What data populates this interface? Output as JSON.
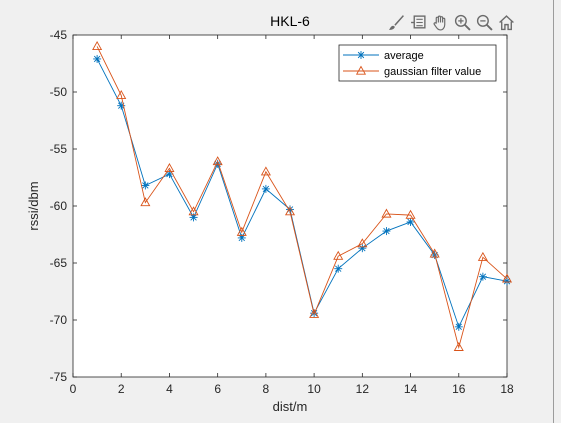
{
  "toolbar": {
    "icons": [
      "brush-icon",
      "data-tips-icon",
      "pan-hand-icon",
      "zoom-in-icon",
      "zoom-out-icon",
      "home-icon"
    ]
  },
  "chart_data": {
    "type": "line",
    "title": "HKL-6",
    "xlabel": "dist/m",
    "ylabel": "rssi/dbm",
    "xlim": [
      0,
      18
    ],
    "ylim": [
      -75,
      -45
    ],
    "xticks": [
      "0",
      "2",
      "4",
      "6",
      "8",
      "10",
      "12",
      "14",
      "16",
      "18"
    ],
    "yticks": [
      "-45",
      "-50",
      "-55",
      "-60",
      "-65",
      "-70",
      "-75"
    ],
    "grid": false,
    "legend_position": "top-right",
    "x": [
      1,
      2,
      3,
      4,
      5,
      6,
      7,
      8,
      9,
      10,
      11,
      12,
      13,
      14,
      15,
      16,
      17,
      18
    ],
    "series": [
      {
        "name": "average",
        "color": "#0072BD",
        "marker": "asterisk",
        "values": [
          -47.1,
          -51.2,
          -58.2,
          -57.2,
          -61.0,
          -56.3,
          -62.8,
          -58.5,
          -60.3,
          -69.4,
          -65.5,
          -63.7,
          -62.2,
          -61.4,
          -64.3,
          -70.6,
          -66.2,
          -66.6
        ]
      },
      {
        "name": "gaussian filter value",
        "color": "#D95319",
        "marker": "triangle",
        "values": [
          -46.0,
          -50.3,
          -59.7,
          -56.7,
          -60.5,
          -56.1,
          -62.3,
          -57.0,
          -60.5,
          -69.5,
          -64.4,
          -63.3,
          -60.7,
          -60.8,
          -64.2,
          -72.4,
          -64.5,
          -66.4
        ]
      }
    ]
  }
}
